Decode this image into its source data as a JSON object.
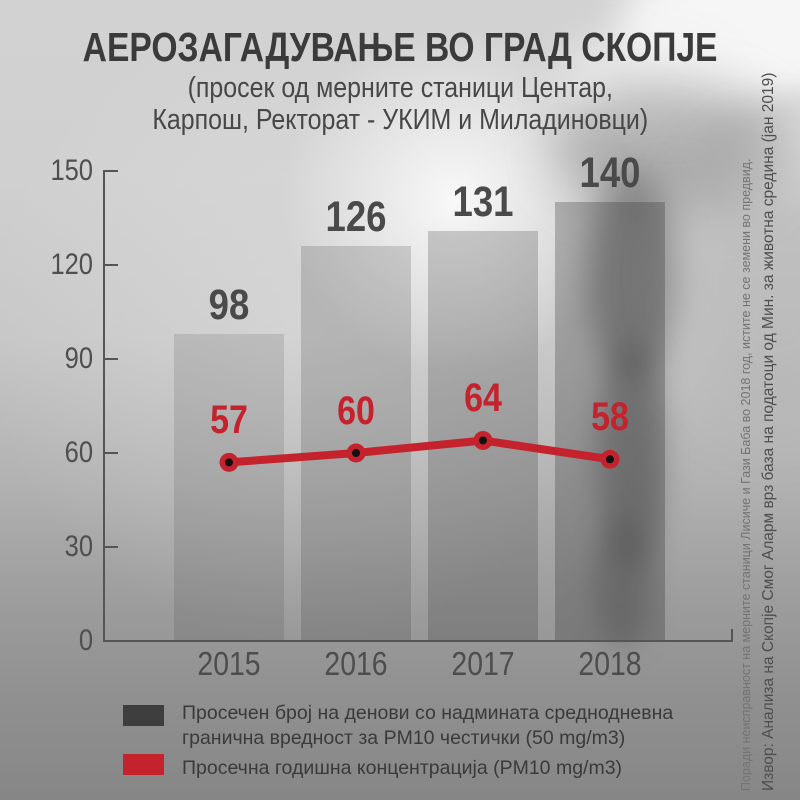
{
  "title": "АЕРОЗАГАДУВАЊЕ ВО ГРАД СКОПЈЕ",
  "subtitle_line1": "(просек од мерните станици Центар,",
  "subtitle_line2": "Карпош, Ректорат - УКИМ и Миладиновци)",
  "chart_data": {
    "type": "bar+line",
    "categories": [
      "2015",
      "2016",
      "2017",
      "2018"
    ],
    "series": [
      {
        "name": "Просечен број на денови со надмината среднодневна гранична вредност за PM10 честички (50 mg/m3)",
        "type": "bar",
        "values": [
          98,
          126,
          131,
          140
        ],
        "color": "#3e3e3e"
      },
      {
        "name": "Просечна годишна концентрација (PM10 mg/m3)",
        "type": "line",
        "values": [
          57,
          60,
          64,
          58
        ],
        "color": "#c4232e"
      }
    ],
    "y_ticks": [
      0,
      30,
      60,
      90,
      120,
      150
    ],
    "ylim": [
      0,
      150
    ],
    "grid": false,
    "legend_position": "bottom",
    "point_inner_dot_color": "#111111"
  },
  "legend": {
    "bar_label_line1": "Просечен број на денови со надмината среднодневна",
    "bar_label_line2": "гранична вредност за PM10 честички (50 mg/m3)",
    "line_label": "Просечна годишна концентрација (PM10 mg/m3)",
    "bar_color": "#3e3e3e",
    "line_color": "#c4232e"
  },
  "source_note": "Извор: Анализа на Скопје Смог Аларм врз база на податоци од Мин. за животна средина (јан 2019)",
  "source_note2": "Поради неисправност на мерните станици Лисиче и Гази Баба во 2018 год, истите не се земени во предвид."
}
